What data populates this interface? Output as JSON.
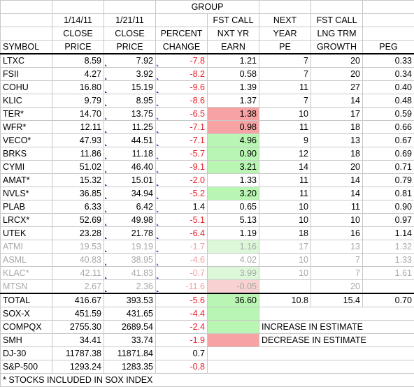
{
  "header": {
    "group": "GROUP",
    "row1": [
      "",
      "1/14/11",
      "1/21/11",
      "",
      "FST CALL",
      "NEXT",
      "FST CALL",
      ""
    ],
    "row2": [
      "",
      "CLOSE",
      "CLOSE",
      "PERCENT",
      "NXT YR",
      "YEAR",
      "LNG TRM",
      ""
    ],
    "row3": [
      "SYMBOL",
      "PRICE",
      "PRICE",
      "CHANGE",
      "EARN",
      "PE",
      "GROWTH",
      "PEG"
    ]
  },
  "stocks": [
    {
      "symbol": "LTXC",
      "close1": "8.59",
      "close2": "7.92",
      "pct": "-7.8",
      "earn": "1.21",
      "pe": "7",
      "growth": "20",
      "peg": "0.33",
      "earn_bg": "",
      "style": ""
    },
    {
      "symbol": "FSII",
      "close1": "4.27",
      "close2": "3.92",
      "pct": "-8.2",
      "earn": "0.58",
      "pe": "7",
      "growth": "20",
      "peg": "0.34",
      "earn_bg": "",
      "style": ""
    },
    {
      "symbol": "COHU",
      "close1": "16.80",
      "close2": "15.19",
      "pct": "-9.6",
      "earn": "1.39",
      "pe": "11",
      "growth": "27",
      "peg": "0.40",
      "earn_bg": "",
      "style": ""
    },
    {
      "symbol": "KLIC",
      "close1": "9.79",
      "close2": "8.95",
      "pct": "-8.6",
      "earn": "1.37",
      "pe": "7",
      "growth": "14",
      "peg": "0.48",
      "earn_bg": "",
      "style": ""
    },
    {
      "symbol": "TER*",
      "close1": "14.70",
      "close2": "13.75",
      "pct": "-6.5",
      "earn": "1.38",
      "pe": "10",
      "growth": "17",
      "peg": "0.59",
      "earn_bg": "pink",
      "style": ""
    },
    {
      "symbol": "WFR*",
      "close1": "12.11",
      "close2": "11.25",
      "pct": "-7.1",
      "earn": "0.98",
      "pe": "11",
      "growth": "18",
      "peg": "0.66",
      "earn_bg": "pink",
      "style": ""
    },
    {
      "symbol": "VECO*",
      "close1": "47.93",
      "close2": "44.51",
      "pct": "-7.1",
      "earn": "4.96",
      "pe": "9",
      "growth": "13",
      "peg": "0.67",
      "earn_bg": "green",
      "style": ""
    },
    {
      "symbol": "BRKS",
      "close1": "11.86",
      "close2": "11.18",
      "pct": "-5.7",
      "earn": "0.90",
      "pe": "12",
      "growth": "18",
      "peg": "0.69",
      "earn_bg": "green",
      "style": ""
    },
    {
      "symbol": "CYMI",
      "close1": "51.02",
      "close2": "46.40",
      "pct": "-9.1",
      "earn": "3.21",
      "pe": "14",
      "growth": "20",
      "peg": "0.71",
      "earn_bg": "green",
      "style": ""
    },
    {
      "symbol": "AMAT*",
      "close1": "15.32",
      "close2": "15.01",
      "pct": "-2.0",
      "earn": "1.33",
      "pe": "11",
      "growth": "14",
      "peg": "0.79",
      "earn_bg": "",
      "style": ""
    },
    {
      "symbol": "NVLS*",
      "close1": "36.85",
      "close2": "34.94",
      "pct": "-5.2",
      "earn": "3.20",
      "pe": "11",
      "growth": "14",
      "peg": "0.81",
      "earn_bg": "green",
      "style": ""
    },
    {
      "symbol": "PLAB",
      "close1": "6.33",
      "close2": "6.42",
      "pct": "1.4",
      "earn": "0.65",
      "pe": "10",
      "growth": "11",
      "peg": "0.90",
      "earn_bg": "",
      "style": ""
    },
    {
      "symbol": "LRCX*",
      "close1": "52.69",
      "close2": "49.98",
      "pct": "-5.1",
      "earn": "5.13",
      "pe": "10",
      "growth": "10",
      "peg": "0.97",
      "earn_bg": "",
      "style": ""
    },
    {
      "symbol": "UTEK",
      "close1": "23.28",
      "close2": "21.78",
      "pct": "-6.4",
      "earn": "1.19",
      "pe": "18",
      "growth": "16",
      "peg": "1.14",
      "earn_bg": "",
      "style": ""
    },
    {
      "symbol": "ATMI",
      "close1": "19.53",
      "close2": "19.19",
      "pct": "-1.7",
      "earn": "1.16",
      "pe": "17",
      "growth": "13",
      "peg": "1.32",
      "earn_bg": "green-light",
      "style": "faded"
    },
    {
      "symbol": "ASML",
      "close1": "40.83",
      "close2": "38.95",
      "pct": "-4.6",
      "earn": "4.02",
      "pe": "10",
      "growth": "7",
      "peg": "1.33",
      "earn_bg": "",
      "style": "faded"
    },
    {
      "symbol": "KLAC*",
      "close1": "42.11",
      "close2": "41.83",
      "pct": "-0.7",
      "earn": "3.99",
      "pe": "10",
      "growth": "7",
      "peg": "1.61",
      "earn_bg": "green-light",
      "style": "faded"
    },
    {
      "symbol": "MTSN",
      "close1": "2.67",
      "close2": "2.36",
      "pct": "-11.6",
      "earn": "-0.05",
      "pe": "",
      "growth": "20",
      "peg": "",
      "earn_bg": "pink-light",
      "style": "faded"
    }
  ],
  "total": {
    "symbol": "TOTAL",
    "close1": "416.67",
    "close2": "393.53",
    "pct": "-5.6",
    "earn": "36.60",
    "pe": "10.8",
    "growth": "15.4",
    "peg": "0.70"
  },
  "indices": [
    {
      "symbol": "SOX-X",
      "close1": "451.59",
      "close2": "431.65",
      "pct": "-4.4"
    },
    {
      "symbol": "COMPQX",
      "close1": "2755.30",
      "close2": "2689.54",
      "pct": "-2.4"
    },
    {
      "symbol": "SMH",
      "close1": "34.41",
      "close2": "33.74",
      "pct": "-1.9"
    },
    {
      "symbol": "DJ-30",
      "close1": "11787.38",
      "close2": "11871.84",
      "pct": "0.7"
    },
    {
      "symbol": "S&P-500",
      "close1": "1293.24",
      "close2": "1283.35",
      "pct": "-0.8"
    }
  ],
  "legend": {
    "increase": "INCREASE IN ESTIMATE",
    "decrease": "DECREASE IN ESTIMATE",
    "increase_color": "#b9f5b3",
    "decrease_color": "#f7a3a3"
  },
  "footnote": "* STOCKS INCLUDED IN SOX INDEX"
}
